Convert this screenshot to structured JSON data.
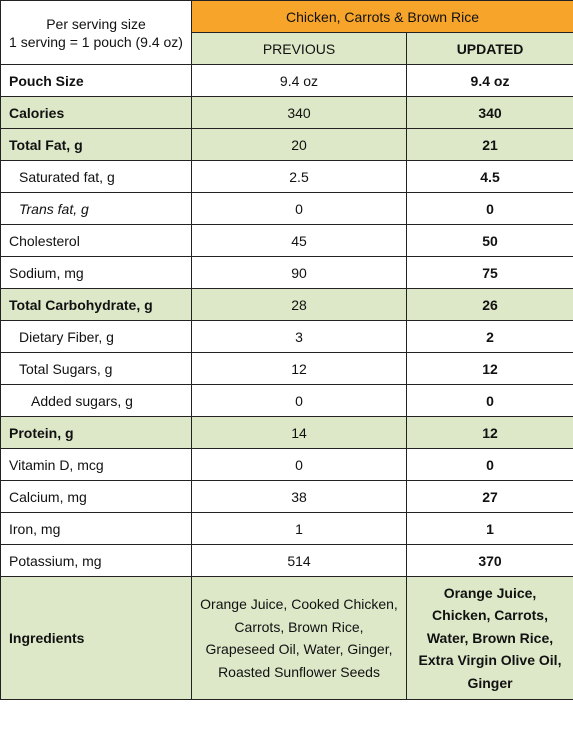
{
  "header": {
    "serving_line1": "Per serving size",
    "serving_line2": "1 serving = 1 pouch (9.4 oz)",
    "product_title": "Chicken, Carrots & Brown Rice",
    "col_previous": "PREVIOUS",
    "col_updated": "UPDATED"
  },
  "colors": {
    "title_bg": "#f7a42a",
    "shaded_bg": "#dde8c8"
  },
  "rows": [
    {
      "label": "Pouch Size",
      "previous": "9.4 oz",
      "updated": "9.4 oz"
    },
    {
      "label": "Calories",
      "previous": "340",
      "updated": "340"
    },
    {
      "label": "Total Fat, g",
      "previous": "20",
      "updated": "21"
    },
    {
      "label": "Saturated fat, g",
      "previous": "2.5",
      "updated": "4.5"
    },
    {
      "label": "Trans fat, g",
      "previous": "0",
      "updated": "0"
    },
    {
      "label": "Cholesterol",
      "previous": "45",
      "updated": "50"
    },
    {
      "label": "Sodium, mg",
      "previous": "90",
      "updated": "75"
    },
    {
      "label": "Total Carbohydrate, g",
      "previous": "28",
      "updated": "26"
    },
    {
      "label": "Dietary Fiber, g",
      "previous": "3",
      "updated": "2"
    },
    {
      "label": "Total Sugars, g",
      "previous": "12",
      "updated": "12"
    },
    {
      "label": "Added sugars, g",
      "previous": "0",
      "updated": "0"
    },
    {
      "label": "Protein, g",
      "previous": "14",
      "updated": "12"
    },
    {
      "label": "Vitamin D, mcg",
      "previous": "0",
      "updated": "0"
    },
    {
      "label": "Calcium, mg",
      "previous": "38",
      "updated": "27"
    },
    {
      "label": "Iron, mg",
      "previous": "1",
      "updated": "1"
    },
    {
      "label": "Potassium, mg",
      "previous": "514",
      "updated": "370"
    }
  ],
  "ingredients": {
    "label": "Ingredients",
    "previous": "Orange Juice, Cooked Chicken, Carrots, Brown Rice, Grapeseed Oil, Water, Ginger, Roasted Sunflower Seeds",
    "updated": "Orange Juice, Chicken, Carrots, Water, Brown Rice, Extra Virgin Olive Oil, Ginger"
  }
}
